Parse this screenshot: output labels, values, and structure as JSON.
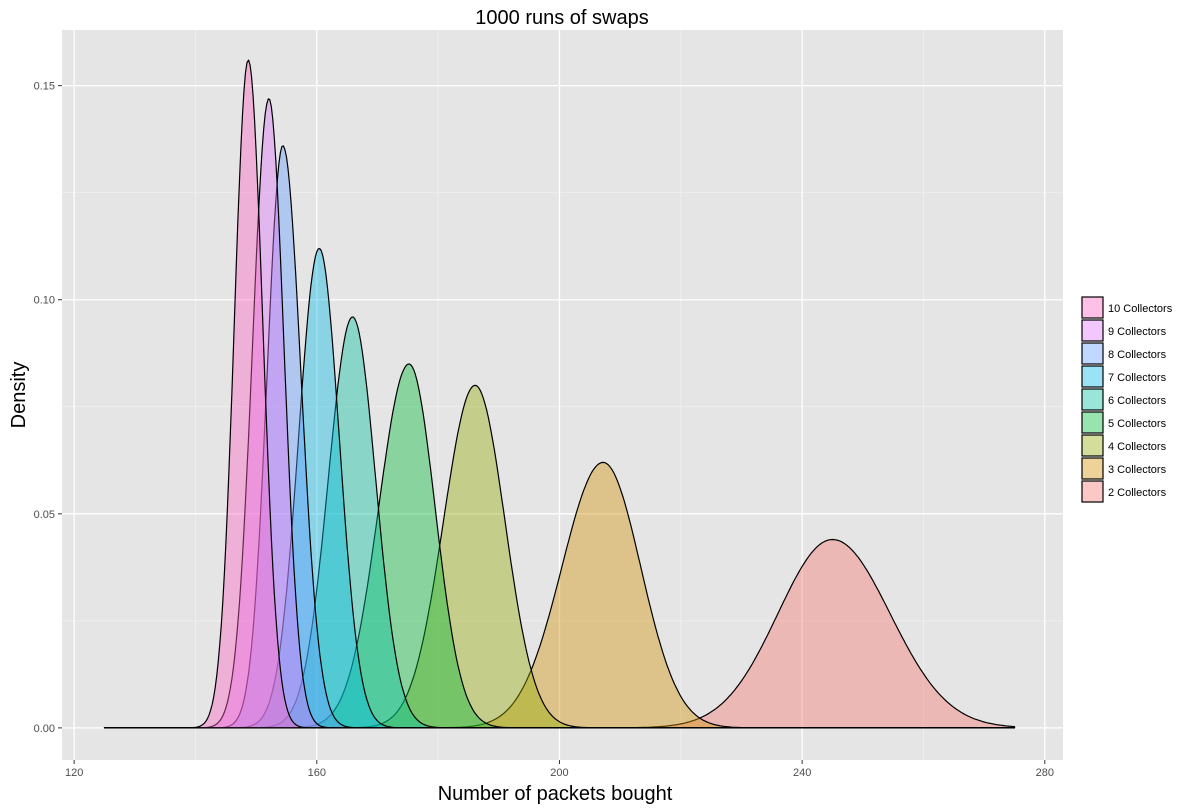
{
  "chart_data": {
    "type": "area",
    "subtype": "density",
    "title": "1000 runs of swaps",
    "xlabel": "Number of packets bought",
    "ylabel": "Density",
    "xlim": [
      118,
      283
    ],
    "ylim": [
      -0.0075,
      0.163
    ],
    "x_range_drawn": [
      125,
      275
    ],
    "xticks": [
      120,
      160,
      200,
      240,
      280
    ],
    "xtick_labels": [
      "120",
      "160",
      "200",
      "240",
      "280"
    ],
    "yticks": [
      0.0,
      0.05,
      0.1,
      0.15
    ],
    "ytick_labels": [
      "0.00",
      "0.05",
      "0.10",
      "0.15"
    ],
    "xminor": [
      140,
      180,
      220,
      260
    ],
    "yminor": [
      0.025,
      0.075,
      0.125
    ],
    "grid": true,
    "legend_position": "right",
    "fill_alpha": 0.4,
    "series": [
      {
        "name": "10 Collectors",
        "color": "#FF61C3",
        "mode": 148.7,
        "peak": 0.156,
        "sd_left": 2.3,
        "sd_right": 2.4
      },
      {
        "name": "9 Collectors",
        "color": "#DB72FB",
        "mode": 152.1,
        "peak": 0.147,
        "sd_left": 2.7,
        "sd_right": 2.5
      },
      {
        "name": "8 Collectors",
        "color": "#619CFF",
        "mode": 154.4,
        "peak": 0.136,
        "sd_left": 2.6,
        "sd_right": 3.0
      },
      {
        "name": "7 Collectors",
        "color": "#00B9E3",
        "mode": 160.4,
        "peak": 0.112,
        "sd_left": 3.4,
        "sd_right": 3.3
      },
      {
        "name": "6 Collectors",
        "color": "#00C19F",
        "mode": 165.9,
        "peak": 0.096,
        "sd_left": 4.0,
        "sd_right": 3.8
      },
      {
        "name": "5 Collectors",
        "color": "#00BA38",
        "mode": 175.2,
        "peak": 0.085,
        "sd_left": 5.0,
        "sd_right": 4.3
      },
      {
        "name": "4 Collectors",
        "color": "#93AA00",
        "mode": 186.1,
        "peak": 0.08,
        "sd_left": 5.2,
        "sd_right": 4.9
      },
      {
        "name": "3 Collectors",
        "color": "#D39200",
        "mode": 207.2,
        "peak": 0.062,
        "sd_left": 6.8,
        "sd_right": 6.2
      },
      {
        "name": "2 Collectors",
        "color": "#F8766D",
        "mode": 245.0,
        "peak": 0.044,
        "sd_left": 9.0,
        "sd_right": 9.5
      }
    ]
  }
}
